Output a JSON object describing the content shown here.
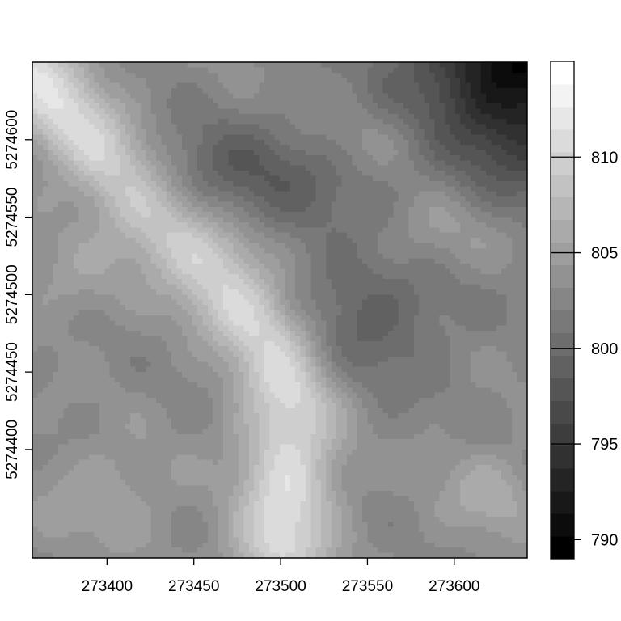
{
  "chart_data": {
    "type": "heatmap",
    "title": "",
    "xlabel": "",
    "ylabel": "",
    "xlim": [
      273357,
      273642
    ],
    "ylim": [
      5274330,
      5274650
    ],
    "x_ticks": [
      273400,
      273450,
      273500,
      273550,
      273600
    ],
    "y_ticks": [
      5274400,
      5274450,
      5274500,
      5274550,
      5274600
    ],
    "colorbar": {
      "range": [
        789,
        815
      ],
      "ticks": [
        790,
        795,
        800,
        805,
        810
      ],
      "levels": 22,
      "colors": [
        "#000000",
        "#ffffff"
      ]
    },
    "surface_features": [
      {
        "kind": "ridge",
        "path": [
          [
            273357,
            5274645
          ],
          [
            273380,
            5274610
          ],
          [
            273420,
            5274560
          ],
          [
            273460,
            5274520
          ],
          [
            273495,
            5274470
          ],
          [
            273505,
            5274430
          ],
          [
            273505,
            5274380
          ],
          [
            273500,
            5274340
          ]
        ],
        "width": 20,
        "amplitude": 8
      },
      {
        "kind": "basin",
        "center": [
          273475,
          5274575
        ],
        "radius_x": 70,
        "radius_y": 38,
        "amplitude": -4.5
      },
      {
        "kind": "basin",
        "center": [
          273550,
          5274490
        ],
        "radius_x": 50,
        "radius_y": 50,
        "amplitude": -4
      },
      {
        "kind": "depression",
        "center": [
          273642,
          5274650
        ],
        "radius_x": 65,
        "radius_y": 75,
        "amplitude": -13
      },
      {
        "kind": "high",
        "center": [
          273590,
          5274540
        ],
        "radius_x": 40,
        "radius_y": 30,
        "amplitude": 3
      },
      {
        "kind": "high",
        "center": [
          273380,
          5274510
        ],
        "radius_x": 35,
        "radius_y": 30,
        "amplitude": 2
      },
      {
        "kind": "high",
        "center": [
          273620,
          5274370
        ],
        "radius_x": 30,
        "radius_y": 30,
        "amplitude": 3
      },
      {
        "kind": "high",
        "center": [
          273400,
          5274370
        ],
        "radius_x": 40,
        "radius_y": 35,
        "amplitude": 2.5
      },
      {
        "kind": "high",
        "center": [
          273560,
          5274600
        ],
        "radius_x": 40,
        "radius_y": 25,
        "amplitude": 2
      }
    ],
    "base_value": 803
  }
}
